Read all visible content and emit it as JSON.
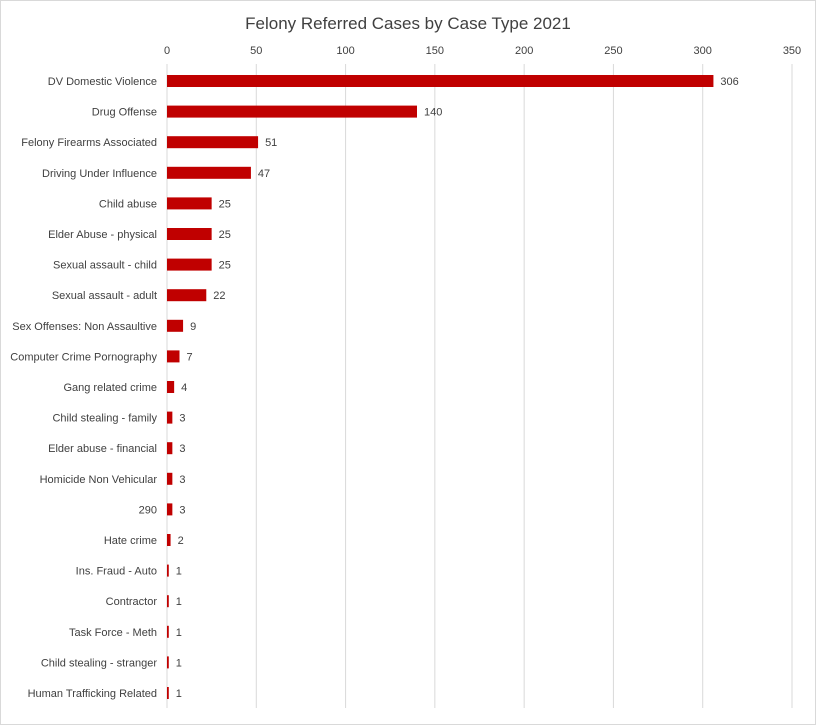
{
  "chart_data": {
    "type": "bar",
    "orientation": "horizontal",
    "title": "Felony Referred Cases by Case Type 2021",
    "xlabel": "",
    "ylabel": "",
    "xlim": [
      0,
      350
    ],
    "x_ticks": [
      0,
      50,
      100,
      150,
      200,
      250,
      300,
      350
    ],
    "grid": true,
    "legend": "none",
    "bar_color": "#c00000",
    "categories": [
      "DV Domestic Violence",
      "Drug Offense",
      "Felony Firearms Associated",
      "Driving Under Influence",
      "Child abuse",
      "Elder Abuse - physical",
      "Sexual assault - child",
      "Sexual assault - adult",
      "Sex Offenses: Non Assaultive",
      "Computer Crime Pornography",
      "Gang related crime",
      "Child stealing - family",
      "Elder abuse - financial",
      "Homicide Non Vehicular",
      "290",
      "Hate crime",
      "Ins. Fraud - Auto",
      "Contractor",
      "Task Force - Meth",
      "Child stealing - stranger",
      "Human Trafficking Related"
    ],
    "values": [
      306,
      140,
      51,
      47,
      25,
      25,
      25,
      22,
      9,
      7,
      4,
      3,
      3,
      3,
      3,
      2,
      1,
      1,
      1,
      1,
      1
    ]
  }
}
